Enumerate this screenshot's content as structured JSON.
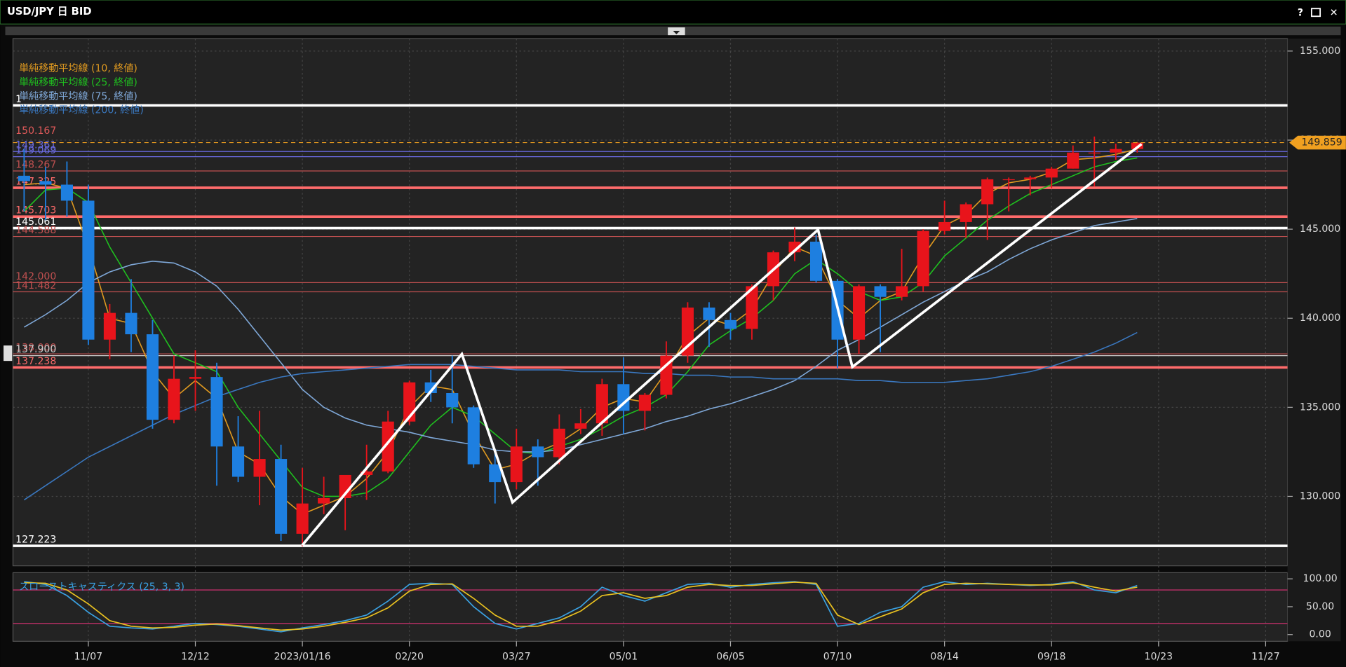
{
  "window": {
    "title": "USD/JPY 日 BID",
    "help": "?",
    "close": "✕"
  },
  "chart_data": [
    {
      "type": "candlestick",
      "categories": [
        null,
        null,
        null,
        "11/07",
        null,
        null,
        null,
        null,
        "12/12",
        null,
        null,
        null,
        null,
        "2023/01/16",
        null,
        null,
        null,
        null,
        "02/20",
        null,
        null,
        null,
        null,
        "03/27",
        null,
        null,
        null,
        null,
        "05/01",
        null,
        null,
        null,
        null,
        "06/05",
        null,
        null,
        null,
        null,
        "07/10",
        null,
        null,
        null,
        null,
        "08/14",
        null,
        null,
        null,
        null,
        "09/18",
        null,
        null,
        null,
        null,
        "10/23",
        null,
        null,
        null,
        null,
        "11/27"
      ],
      "open": [
        148,
        147.7,
        147.5,
        146.6,
        138.8,
        140.3,
        139.1,
        134.3,
        136.6,
        136.7,
        132.8,
        131.1,
        132.1,
        127.9,
        129.6,
        129.9,
        131.2,
        131.4,
        134.2,
        136.4,
        135.8,
        135.0,
        131.8,
        130.8,
        132.8,
        132.2,
        133.8,
        134.1,
        136.3,
        134.8,
        135.7,
        137.9,
        140.6,
        139.9,
        139.4,
        141.8,
        143.7,
        144.3,
        142.1,
        138.8,
        141.8,
        141.2,
        141.8,
        144.9,
        145.4,
        146.4,
        147.8,
        147.8,
        147.9,
        148.4,
        149.3,
        149.3,
        149.5,
        null,
        null,
        null,
        null,
        null,
        null
      ],
      "high": [
        149.5,
        148.5,
        148.8,
        147.5,
        140.8,
        142.2,
        139.9,
        137.9,
        138.2,
        137.5,
        134.5,
        134.8,
        132.9,
        131.6,
        131.1,
        131.2,
        132.9,
        134.8,
        136.5,
        137.1,
        137.9,
        135.1,
        132.6,
        133.8,
        133.2,
        134.6,
        134.9,
        136.6,
        137.8,
        135.8,
        138.7,
        140.9,
        140.9,
        140.3,
        141.9,
        143.8,
        145.1,
        144.7,
        142.2,
        141.9,
        141.9,
        143.9,
        145.0,
        146.6,
        146.5,
        147.9,
        147.9,
        148.0,
        148.5,
        149.7,
        150.2,
        149.8,
        149.9,
        null,
        null,
        null,
        null,
        null,
        null
      ],
      "low": [
        146,
        145.5,
        145.7,
        138.5,
        137.7,
        138.1,
        133.8,
        134.1,
        134.8,
        130.6,
        130.8,
        129.5,
        127.5,
        127.2,
        129.0,
        128.1,
        129.8,
        131.3,
        134.0,
        135.3,
        134.1,
        131.6,
        129.6,
        130.4,
        130.6,
        131.8,
        133.5,
        133.4,
        133.5,
        133.7,
        135.5,
        137.5,
        138.4,
        138.8,
        138.8,
        141.0,
        143.2,
        142.0,
        137.2,
        138.0,
        138.1,
        141.0,
        141.5,
        144.7,
        144.5,
        144.4,
        146.0,
        146.9,
        147.3,
        148.4,
        147.4,
        148.9,
        149.3,
        null,
        null,
        null,
        null,
        null,
        null
      ],
      "close": [
        147.7,
        147.5,
        146.6,
        138.8,
        140.3,
        139.1,
        134.3,
        136.6,
        136.7,
        132.8,
        131.1,
        132.1,
        127.9,
        129.6,
        129.9,
        131.2,
        131.4,
        134.2,
        136.4,
        135.8,
        135.0,
        131.8,
        130.8,
        132.8,
        132.2,
        133.8,
        134.1,
        136.3,
        134.8,
        135.7,
        137.9,
        140.6,
        139.9,
        139.4,
        141.8,
        143.7,
        144.3,
        142.1,
        138.8,
        141.8,
        141.2,
        141.8,
        144.9,
        145.4,
        146.4,
        147.8,
        147.8,
        147.9,
        148.4,
        149.3,
        149.3,
        149.5,
        149.859,
        null,
        null,
        null,
        null,
        null,
        null
      ],
      "up_color": "#e8141b",
      "down_color": "#1e7fe0",
      "series": [
        {
          "name": "単純移動平均線 (10, 終値)",
          "color": "#e09a20",
          "values": [
            147.5,
            147.6,
            147.3,
            144,
            140,
            139.7,
            137,
            135.5,
            136.5,
            135.5,
            132.5,
            131.8,
            130,
            129,
            129.5,
            130,
            131,
            132.5,
            135,
            136.2,
            136,
            133.5,
            131.5,
            131.8,
            132.5,
            133,
            133.8,
            135,
            135.5,
            135.3,
            137,
            139,
            140,
            139.6,
            140.5,
            142.5,
            144,
            143.5,
            141,
            140,
            141,
            141.5,
            143.5,
            145.2,
            145.8,
            147,
            147.6,
            147.8,
            148.2,
            148.9,
            149,
            149.2,
            149.5,
            null,
            null,
            null,
            null,
            null,
            null
          ]
        },
        {
          "name": "単純移動平均線 (25, 終値)",
          "color": "#1fc01f",
          "values": [
            146,
            147.2,
            147.3,
            146.5,
            144,
            142,
            140,
            138,
            137.5,
            137,
            135,
            133.5,
            132,
            130.5,
            130,
            130,
            130.2,
            131,
            132.5,
            134,
            135,
            134.5,
            133.5,
            132.5,
            132.4,
            132.8,
            133.2,
            133.8,
            134.5,
            135,
            135.7,
            137,
            138.5,
            139.3,
            140,
            141,
            142.5,
            143.3,
            142.5,
            141.5,
            141,
            141.2,
            142,
            143.5,
            144.5,
            145.5,
            146.3,
            147,
            147.5,
            148,
            148.5,
            148.8,
            149.0,
            null,
            null,
            null,
            null,
            null,
            null
          ]
        },
        {
          "name": "単純移動平均線 (75, 終値)",
          "color": "#7fa8d8",
          "values": [
            139.5,
            140.2,
            141,
            142,
            142.6,
            143,
            143.2,
            143.1,
            142.6,
            141.8,
            140.5,
            139,
            137.5,
            136,
            135,
            134.4,
            134,
            133.8,
            133.6,
            133.3,
            133.1,
            132.9,
            132.6,
            132.5,
            132.5,
            132.6,
            132.9,
            133.2,
            133.5,
            133.8,
            134.2,
            134.5,
            134.9,
            135.2,
            135.6,
            136,
            136.5,
            137.3,
            138.2,
            138.8,
            139.5,
            140.2,
            140.9,
            141.5,
            142.1,
            142.6,
            143.3,
            143.9,
            144.4,
            144.8,
            145.2,
            145.4,
            145.6,
            null,
            null,
            null,
            null,
            null,
            null
          ]
        },
        {
          "name": "単純移動平均線 (200, 終値)",
          "color": "#3a78c0",
          "values": [
            129.8,
            130.6,
            131.4,
            132.2,
            132.8,
            133.4,
            134,
            134.6,
            135.1,
            135.6,
            136,
            136.4,
            136.7,
            136.9,
            137,
            137.1,
            137.2,
            137.3,
            137.4,
            137.4,
            137.4,
            137.3,
            137.2,
            137.1,
            137.1,
            137.1,
            137.0,
            137.0,
            137.0,
            136.9,
            136.9,
            136.8,
            136.8,
            136.7,
            136.7,
            136.6,
            136.6,
            136.6,
            136.6,
            136.5,
            136.5,
            136.4,
            136.4,
            136.4,
            136.5,
            136.6,
            136.8,
            137,
            137.3,
            137.7,
            138.1,
            138.6,
            139.2,
            null,
            null,
            null,
            null,
            null,
            null
          ]
        }
      ],
      "levels": [
        {
          "value": 151.95,
          "label": "1",
          "color": "#ffffff",
          "width": 3
        },
        {
          "value": 150.167,
          "label": "150.167",
          "color": "#e05a5a",
          "width": 0
        },
        {
          "value": 149.361,
          "label": "149.361",
          "color": "#6a6ae0",
          "width": 1
        },
        {
          "value": 149.069,
          "label": "149.069",
          "color": "#6a6ae0",
          "width": 1
        },
        {
          "value": 148.267,
          "label": "148.267",
          "color": "#c05050",
          "width": 1
        },
        {
          "value": 147.325,
          "label": "147.325",
          "color": "#ff6b6b",
          "width": 3
        },
        {
          "value": 145.703,
          "label": "145.703",
          "color": "#ff6b6b",
          "width": 3
        },
        {
          "value": 145.061,
          "label": "145.061",
          "color": "#ffffff",
          "width": 3
        },
        {
          "value": 144.588,
          "label": "144.588",
          "color": "#c05050",
          "width": 1
        },
        {
          "value": 142.0,
          "label": "142.000",
          "color": "#c05050",
          "width": 1
        },
        {
          "value": 141.482,
          "label": "141.482",
          "color": "#c05050",
          "width": 1
        },
        {
          "value": 138.0,
          "label": "138.000",
          "color": "#c05050",
          "width": 1
        },
        {
          "value": 137.9,
          "label": "137.900",
          "color": "#cccccc",
          "width": 1
        },
        {
          "value": 137.238,
          "label": "137.238",
          "color": "#ff6b6b",
          "width": 3
        },
        {
          "value": 127.223,
          "label": "127.223",
          "color": "#ffffff",
          "width": 3
        }
      ],
      "last_price": {
        "value": 149.859,
        "label": "149.859",
        "color": "#f0a020"
      },
      "ylim": [
        126.1,
        155.7
      ],
      "yticks": [
        {
          "value": 130,
          "label": "130.000"
        },
        {
          "value": 135,
          "label": "135.000"
        },
        {
          "value": 140,
          "label": "140.000"
        },
        {
          "value": 145,
          "label": "145.000"
        },
        {
          "value": 150,
          "label": "150.000"
        },
        {
          "value": 155,
          "label": "155.000"
        }
      ],
      "grid": true
    },
    {
      "type": "stochastic",
      "title": "スローストキャスティクス (25, 3, 3)",
      "series": [
        {
          "color": "#3aa0e0",
          "values": [
            95,
            90,
            70,
            40,
            15,
            12,
            10,
            15,
            20,
            18,
            15,
            10,
            5,
            12,
            18,
            25,
            35,
            60,
            90,
            92,
            90,
            50,
            20,
            10,
            20,
            30,
            50,
            85,
            70,
            60,
            75,
            90,
            92,
            85,
            90,
            93,
            95,
            90,
            15,
            20,
            40,
            50,
            85,
            95,
            90,
            92,
            90,
            88,
            90,
            95,
            80,
            75,
            88,
            null,
            null,
            null,
            null,
            null,
            null
          ]
        },
        {
          "color": "#e8c020",
          "values": [
            93,
            92,
            80,
            55,
            25,
            15,
            12,
            13,
            17,
            19,
            16,
            12,
            8,
            10,
            15,
            22,
            30,
            48,
            78,
            90,
            91,
            65,
            35,
            15,
            15,
            25,
            42,
            70,
            75,
            65,
            70,
            85,
            90,
            88,
            88,
            91,
            94,
            92,
            35,
            18,
            32,
            46,
            75,
            90,
            92,
            91,
            90,
            89,
            89,
            93,
            85,
            78,
            85,
            null,
            null,
            null,
            null,
            null,
            null
          ]
        }
      ],
      "bands": [
        20,
        80
      ],
      "band_color": "#c0306a",
      "ylim": [
        -12,
        111
      ],
      "yticks": [
        {
          "value": 0,
          "label": "0.00"
        },
        {
          "value": 50,
          "label": "50.00"
        },
        {
          "value": 100,
          "label": "100.00"
        }
      ]
    }
  ]
}
